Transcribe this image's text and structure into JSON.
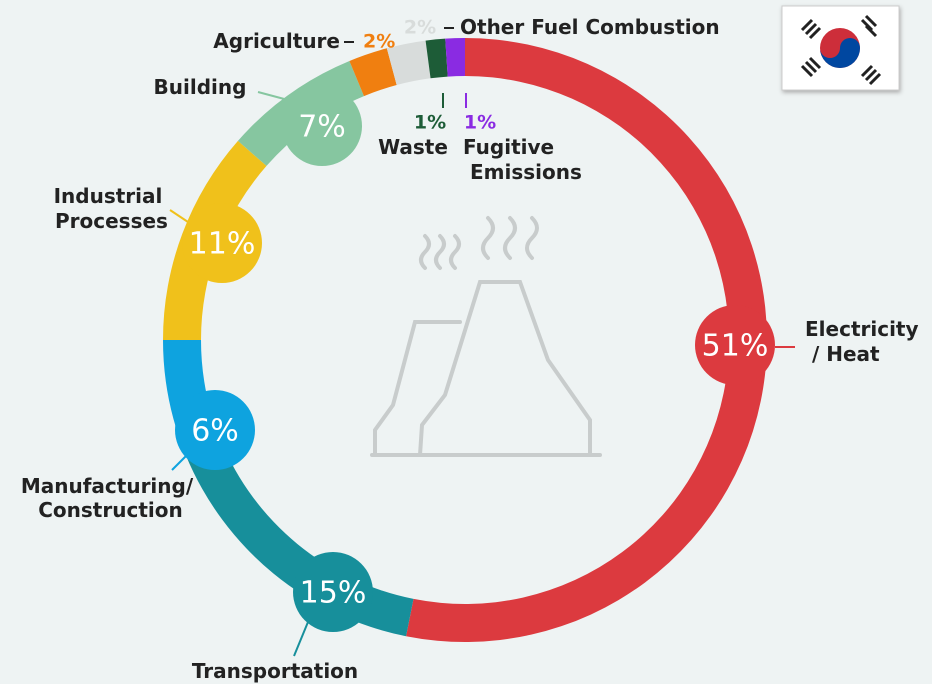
{
  "chart_data": {
    "type": "pie",
    "categories": [
      "Electricity / Heat",
      "Transportation",
      "Manufacturing/ Construction",
      "Industrial Processes",
      "Building",
      "Agriculture",
      "Other Fuel Combustion",
      "Waste",
      "Fugitive Emissions"
    ],
    "values": [
      51,
      15,
      6,
      11,
      7,
      2,
      2,
      1,
      1
    ],
    "value_labels": [
      "51%",
      "15%",
      "6%",
      "11%",
      "7%",
      "2%",
      "2%",
      "1%",
      "1%"
    ],
    "colors": [
      "#dc3a3f",
      "#178f9b",
      "#0ea3df",
      "#f0c11b",
      "#86c6a0",
      "#f07f10",
      "#d8dcdb",
      "#1d5c37",
      "#8a2be2"
    ]
  }
}
